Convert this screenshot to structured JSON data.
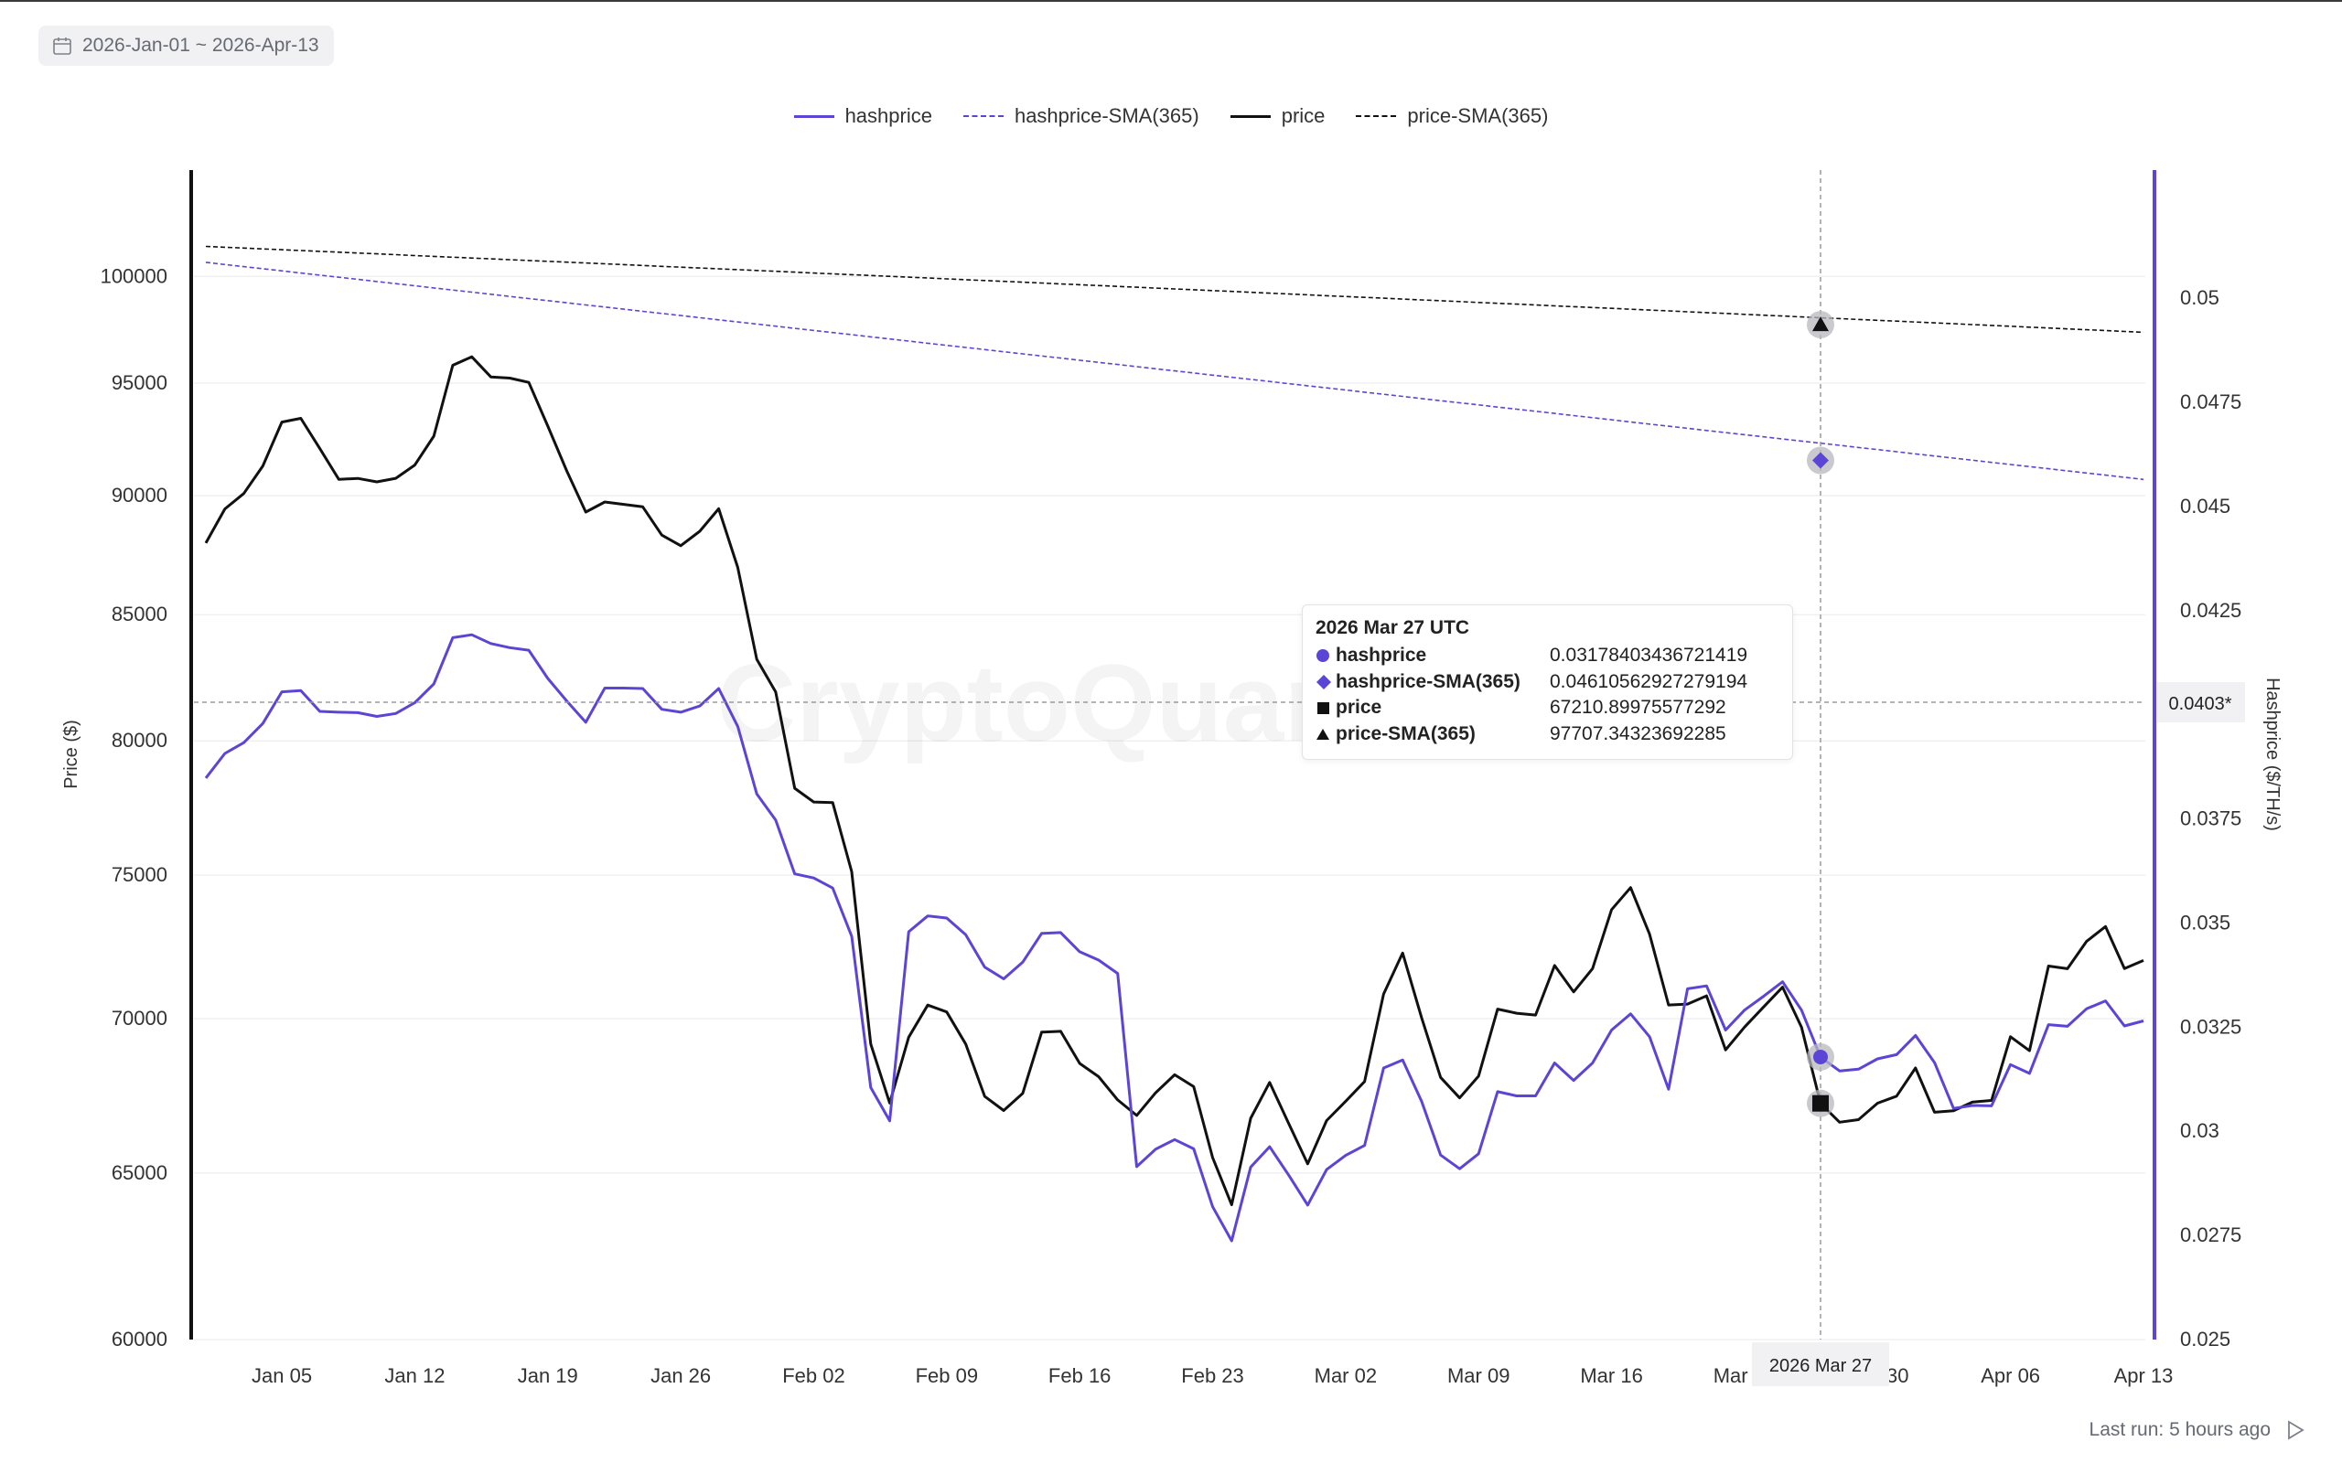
{
  "date_range": {
    "label": "2026-Jan-01 ~ 2026-Apr-13",
    "icon": "calendar-icon"
  },
  "legend": [
    {
      "label": "hashprice",
      "color": "#5b45d6",
      "style": "solid"
    },
    {
      "label": "hashprice-SMA(365)",
      "color": "#5b45d6",
      "style": "dashed"
    },
    {
      "label": "price",
      "color": "#111111",
      "style": "solid"
    },
    {
      "label": "price-SMA(365)",
      "color": "#111111",
      "style": "dashed"
    }
  ],
  "watermark": "CryptoQuant",
  "tooltip": {
    "title": "2026 Mar 27 UTC",
    "rows": [
      {
        "name": "hashprice",
        "value": "0.03178403436721419",
        "marker": "circle"
      },
      {
        "name": "hashprice-SMA(365)",
        "value": "0.04610562927279194",
        "marker": "diamond"
      },
      {
        "name": "price",
        "value": "67210.89975577292",
        "marker": "square"
      },
      {
        "name": "price-SMA(365)",
        "value": "97707.34323692285",
        "marker": "triangle"
      }
    ]
  },
  "crosshair": {
    "x_label": "2026 Mar 27",
    "y_label": "0.0403*"
  },
  "footer": {
    "last_run": "Last run: 5 hours ago",
    "icon": "play-icon"
  },
  "chart_data": {
    "type": "line",
    "x_start": "2026-01-01",
    "x_end": "2026-04-13",
    "x_tick_labels": [
      "Jan 05",
      "Jan 12",
      "Jan 19",
      "Jan 26",
      "Feb 02",
      "Feb 09",
      "Feb 16",
      "Feb 23",
      "Mar 02",
      "Mar 09",
      "Mar 16",
      "Mar 23",
      "Mar 30",
      "Apr 06",
      "Apr 13"
    ],
    "x_tick_dates": [
      "2026-01-05",
      "2026-01-12",
      "2026-01-19",
      "2026-01-26",
      "2026-02-02",
      "2026-02-09",
      "2026-02-16",
      "2026-02-23",
      "2026-03-02",
      "2026-03-09",
      "2026-03-16",
      "2026-03-23",
      "2026-03-30",
      "2026-04-06",
      "2026-04-13"
    ],
    "left_axis": {
      "label": "Price ($)",
      "scale": "log",
      "range": [
        60000,
        103000
      ],
      "ticks": [
        60000,
        65000,
        70000,
        75000,
        80000,
        85000,
        90000,
        95000,
        100000
      ]
    },
    "right_axis": {
      "label": "Hashprice ($/TH/s)",
      "scale": "linear",
      "range": [
        0.025,
        0.052
      ],
      "ticks": [
        0.025,
        0.0275,
        0.03,
        0.0325,
        0.035,
        0.0375,
        0.0425,
        0.045,
        0.0475,
        0.05
      ],
      "tick_labels": [
        "0.025",
        "0.0275",
        "0.03",
        "0.0325",
        "0.035",
        "0.0375",
        "0.0425",
        "0.045",
        "0.0475",
        "0.05"
      ]
    },
    "grid": true,
    "legend_position": "top-center",
    "series": [
      {
        "name": "price",
        "axis": "left",
        "color": "#111111",
        "style": "solid",
        "values": [
          87976,
          89430,
          90095,
          91295,
          93240,
          93408,
          92059,
          90706,
          90751,
          90597,
          90753,
          91333,
          92611,
          95818,
          96213,
          95287,
          95232,
          95035,
          93059,
          91079,
          89294,
          89727,
          89624,
          89520,
          88310,
          87863,
          88475,
          89435,
          86951,
          83197,
          81898,
          78195,
          77683,
          77660,
          75121,
          69153,
          67223,
          69382,
          70462,
          70228,
          69155,
          67436,
          66981,
          67534,
          69550,
          69579,
          68514,
          68077,
          67322,
          66822,
          67555,
          68141,
          67754,
          65481,
          64013,
          66730,
          67889,
          66567,
          65287,
          66657,
          67278,
          67920,
          70836,
          72244,
          70039,
          68054,
          67388,
          68096,
          70325,
          70187,
          70123,
          71815,
          70908,
          71707,
          73769,
          74553,
          72905,
          70464,
          70495,
          70775,
          68959,
          69718,
          70397,
          71070,
          69716,
          67210,
          66605,
          66686,
          67217,
          67444,
          68362,
          66923,
          66974,
          67252,
          67305,
          69398,
          68933,
          71794,
          71702,
          72649,
          73170,
          71711,
          71987
        ]
      },
      {
        "name": "hashprice",
        "axis": "right",
        "color": "#5b45d6",
        "style": "solid",
        "values": [
          0.03848,
          0.03907,
          0.03933,
          0.03979,
          0.04055,
          0.04058,
          0.04008,
          0.04006,
          0.04005,
          0.03996,
          0.04003,
          0.04029,
          0.04074,
          0.04185,
          0.04192,
          0.04171,
          0.04161,
          0.04155,
          0.04087,
          0.04033,
          0.03982,
          0.04064,
          0.04064,
          0.04063,
          0.04013,
          0.04006,
          0.04021,
          0.04063,
          0.03972,
          0.0381,
          0.03747,
          0.03618,
          0.03608,
          0.03584,
          0.03468,
          0.03105,
          0.03025,
          0.03479,
          0.03517,
          0.03512,
          0.03472,
          0.03394,
          0.03366,
          0.03406,
          0.03475,
          0.03477,
          0.03431,
          0.03411,
          0.03379,
          0.02915,
          0.02957,
          0.0298,
          0.02958,
          0.02819,
          0.02737,
          0.02914,
          0.02963,
          0.02895,
          0.02823,
          0.02908,
          0.02942,
          0.02966,
          0.03152,
          0.03171,
          0.03072,
          0.02943,
          0.0291,
          0.02946,
          0.03095,
          0.03085,
          0.03085,
          0.03164,
          0.03122,
          0.03164,
          0.03243,
          0.03282,
          0.03227,
          0.03101,
          0.03342,
          0.03349,
          0.03243,
          0.03291,
          0.03324,
          0.03359,
          0.03291,
          0.03178,
          0.03145,
          0.03149,
          0.03174,
          0.03184,
          0.0323,
          0.03165,
          0.03055,
          0.03062,
          0.03061,
          0.0316,
          0.03139,
          0.03256,
          0.03252,
          0.03294,
          0.03313,
          0.03253,
          0.03265
        ]
      },
      {
        "name": "price-SMA(365)",
        "axis": "left",
        "color": "#111111",
        "style": "dashed",
        "start": 101450,
        "end": 97350,
        "marked_value": 97707
      },
      {
        "name": "hashprice-SMA(365)",
        "axis": "right",
        "color": "#5b45d6",
        "style": "dashed",
        "start": 0.05086,
        "end": 0.04565,
        "marked_value": 0.04611
      }
    ],
    "highlight": {
      "date": "2026-03-27",
      "hashprice": 0.03178403436721419,
      "hashprice_sma365": 0.04610562927279194,
      "price": 67210.89975577292,
      "price_sma365": 97707.34323692285,
      "hover_value_right_axis": 0.0403
    }
  }
}
